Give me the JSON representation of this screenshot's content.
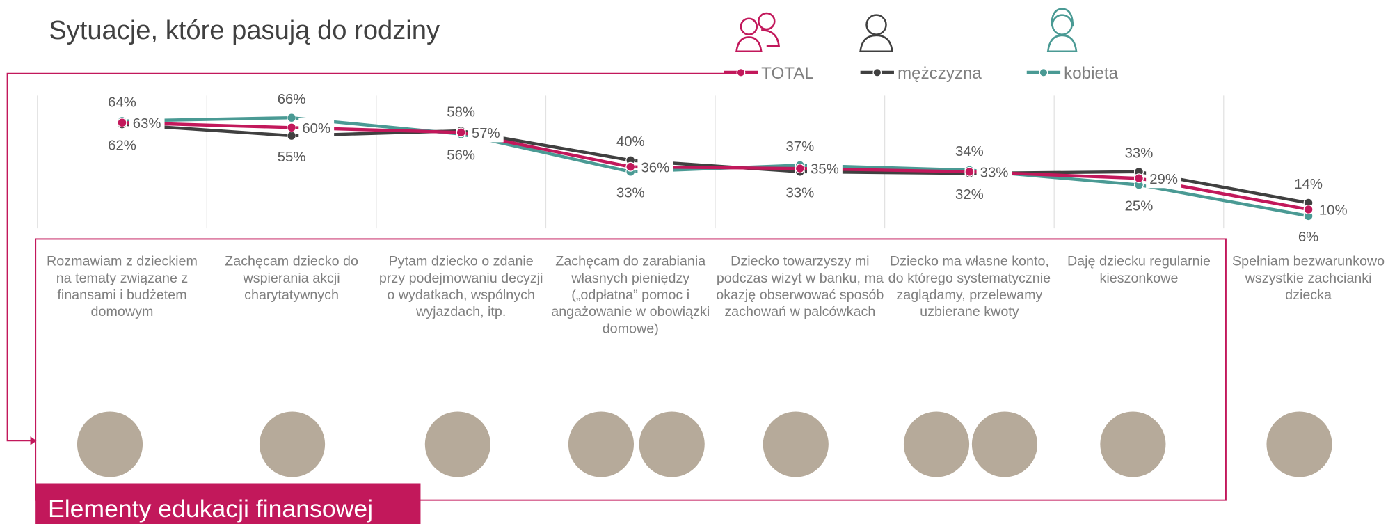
{
  "chart_data": {
    "type": "line",
    "title": "Sytuacje, które pasują do rodziny",
    "banner": "Elementy edukacji finansowej",
    "categories": [
      "Rozmawiam z dzieckiem na tematy związane z finansami i budżetem domowym",
      "Zachęcam dziecko do wspierania akcji charytatywnych",
      "Pytam dziecko o zdanie przy podejmowaniu decyzji o wydatkach, wspólnych wyjazdach, itp.",
      "Zachęcam do zarabiania własnych pieniędzy („odpłatna” pomoc i angażowanie w obowiązki domowe)",
      "Dziecko towarzyszy mi podczas wizyt w banku, ma okazję obserwować sposób zachowań w palcówkach",
      "Dziecko ma własne konto, do którego systematycznie zaglądamy, przelewamy uzbierane kwoty",
      "Daję dziecku regularnie kieszonkowe",
      "Spełniam bezwarunkowo wszystkie zachcianki dziecka"
    ],
    "series": [
      {
        "name": "TOTAL",
        "color": "#c2185b",
        "values": [
          63,
          60,
          57,
          36,
          35,
          33,
          29,
          10
        ],
        "value_labels": [
          "63%",
          "60%",
          "57%",
          "36%",
          "35%",
          "33%",
          "29%",
          "10%"
        ]
      },
      {
        "name": "mężczyzna",
        "color": "#404040",
        "values": [
          62,
          55,
          58,
          40,
          33,
          32,
          33,
          14
        ],
        "value_labels": [
          "62%",
          "55%",
          "58%",
          "40%",
          "33%",
          "32%",
          "33%",
          "14%"
        ]
      },
      {
        "name": "kobieta",
        "color": "#4a9a94",
        "values": [
          64,
          66,
          56,
          33,
          37,
          34,
          25,
          6
        ],
        "value_labels": [
          "64%",
          "66%",
          "56%",
          "33%",
          "37%",
          "34%",
          "25%",
          "6%"
        ]
      }
    ]
  }
}
